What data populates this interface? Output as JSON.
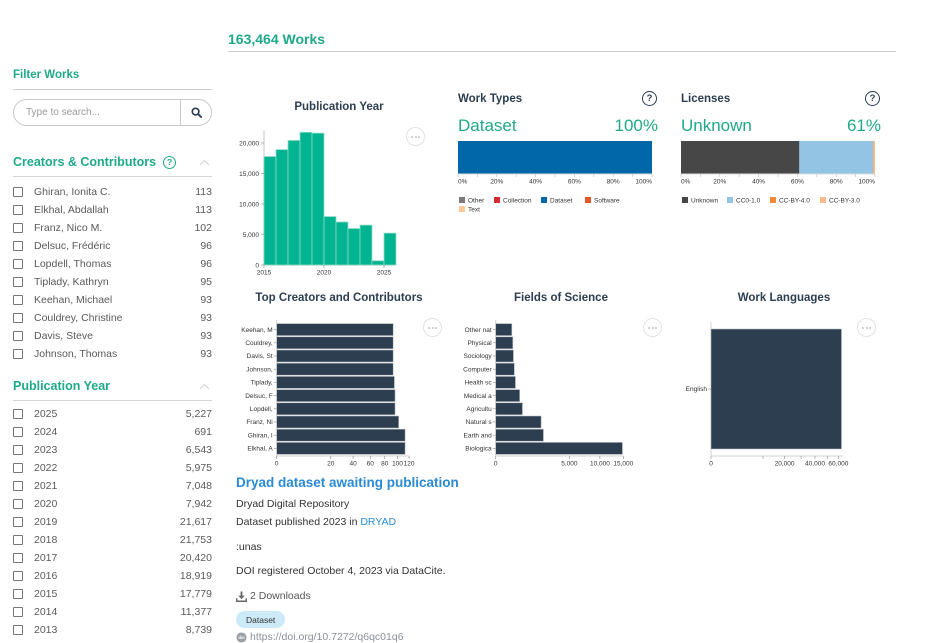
{
  "header": {
    "works_count": "163,464 Works"
  },
  "sidebar": {
    "filter_title": "Filter Works",
    "search": {
      "placeholder": "Type to search...",
      "value": ""
    },
    "creators": {
      "title": "Creators & Contributors",
      "help_icon": "question-circle-icon",
      "collapse_icon": "chevron-up-icon",
      "items": [
        {
          "label": "Ghiran, Ionita C.",
          "count": "113"
        },
        {
          "label": "Elkhal, Abdallah",
          "count": "113"
        },
        {
          "label": "Franz, Nico M.",
          "count": "102"
        },
        {
          "label": "Delsuc, Frédéric",
          "count": "96"
        },
        {
          "label": "Lopdell, Thomas",
          "count": "96"
        },
        {
          "label": "Tiplady, Kathryn",
          "count": "95"
        },
        {
          "label": "Keehan, Michael",
          "count": "93"
        },
        {
          "label": "Couldrey, Christine",
          "count": "93"
        },
        {
          "label": "Davis, Steve",
          "count": "93"
        },
        {
          "label": "Johnson, Thomas",
          "count": "93"
        }
      ]
    },
    "publication_year": {
      "title": "Publication Year",
      "collapse_icon": "chevron-up-icon",
      "items": [
        {
          "label": "2025",
          "count": "5,227"
        },
        {
          "label": "2024",
          "count": "691"
        },
        {
          "label": "2023",
          "count": "6,543"
        },
        {
          "label": "2022",
          "count": "5,975"
        },
        {
          "label": "2021",
          "count": "7,048"
        },
        {
          "label": "2020",
          "count": "7,942"
        },
        {
          "label": "2019",
          "count": "21,617"
        },
        {
          "label": "2018",
          "count": "21,753"
        },
        {
          "label": "2017",
          "count": "20,420"
        },
        {
          "label": "2016",
          "count": "18,919"
        },
        {
          "label": "2015",
          "count": "17,779"
        },
        {
          "label": "2014",
          "count": "11,377"
        },
        {
          "label": "2013",
          "count": "8,739"
        }
      ]
    }
  },
  "chart_data": [
    {
      "type": "bar",
      "title": "Publication Year",
      "categories": [
        "2015",
        "2016",
        "2017",
        "2018",
        "2019",
        "2020",
        "2021",
        "2022",
        "2023",
        "2024",
        "2025"
      ],
      "values": [
        17779,
        18919,
        20420,
        21753,
        21617,
        7942,
        7048,
        5975,
        6543,
        691,
        5227
      ],
      "xlabel": "",
      "ylabel": "",
      "xticks": [
        "2015",
        "2020",
        "2025"
      ],
      "yticks": [
        0,
        5000,
        10000,
        15000,
        20000
      ],
      "ytick_labels": [
        "0",
        "5,000",
        "10,000",
        "15,000",
        "20,000"
      ],
      "ylim": [
        0,
        22000
      ],
      "color": "#00b391",
      "grid": false
    },
    {
      "type": "bar",
      "orientation": "horizontal-stacked",
      "title": "Work Types",
      "highlight_label": "Dataset",
      "highlight_value": "100%",
      "series": [
        {
          "name": "Other",
          "value": 0,
          "color": "#7a7a7a"
        },
        {
          "name": "Collection",
          "value": 0,
          "color": "#d62b35"
        },
        {
          "name": "Dataset",
          "value": 100,
          "color": "#0167a8"
        },
        {
          "name": "Software",
          "value": 0,
          "color": "#e8552a"
        },
        {
          "name": "Text",
          "value": 0,
          "color": "#fdc89a"
        }
      ],
      "xlim": [
        0,
        100
      ],
      "xtick_labels": [
        "0%",
        "20%",
        "40%",
        "60%",
        "80%",
        "100%"
      ],
      "legend": "bottom"
    },
    {
      "type": "bar",
      "orientation": "horizontal-stacked",
      "title": "Licenses",
      "highlight_label": "Unknown",
      "highlight_value": "61%",
      "series": [
        {
          "name": "Unknown",
          "value": 61,
          "color": "#474747"
        },
        {
          "name": "CC0-1.0",
          "value": 38,
          "color": "#93c4e4"
        },
        {
          "name": "CC-BY-4.0",
          "value": 0.2,
          "color": "#f0883a"
        },
        {
          "name": "CC-BY-3.0",
          "value": 0.8,
          "color": "#fcb98a"
        }
      ],
      "xlim": [
        0,
        100
      ],
      "xtick_labels": [
        "0%",
        "20%",
        "40%",
        "60%",
        "80%",
        "100%"
      ],
      "legend": "bottom"
    },
    {
      "type": "bar",
      "orientation": "horizontal",
      "title": "Top Creators and Contributors",
      "categories": [
        "Keehan, M",
        "Couldrey,",
        "Davis, St",
        "Johnson,",
        "Tiplady,",
        "Delsuc, F",
        "Lopdell,",
        "Franz, Ni",
        "Ghiran, I",
        "Elkhal, A"
      ],
      "values": [
        93,
        93,
        93,
        93,
        95,
        96,
        96,
        102,
        113,
        113
      ],
      "xscale": "sqrt",
      "xlim": [
        0,
        120
      ],
      "xticks": [
        0,
        20,
        40,
        60,
        80,
        100,
        120
      ],
      "xtick_labels": [
        "0",
        "20",
        "40",
        "60",
        "80",
        "100",
        "120"
      ],
      "color": "#2c3e50"
    },
    {
      "type": "bar",
      "orientation": "horizontal",
      "title": "Fields of Science",
      "categories": [
        "Other nat",
        "Physical",
        "Sociology",
        "Computer",
        "Health sc",
        "Medical a",
        "Agricultu",
        "Natural s",
        "Earth and",
        "Biologica"
      ],
      "values": [
        240,
        270,
        290,
        320,
        360,
        530,
        660,
        1900,
        2100,
        14800
      ],
      "xscale": "sqrt",
      "xlim": [
        0,
        15000
      ],
      "xticks": [
        0,
        5000,
        10000,
        15000
      ],
      "xtick_labels": [
        "0",
        "5,000",
        "10,000",
        "15,000"
      ],
      "color": "#2c3e50"
    },
    {
      "type": "bar",
      "orientation": "horizontal",
      "title": "Work Languages",
      "categories": [
        "English"
      ],
      "values": [
        63000
      ],
      "xscale": "sqrt",
      "xlim": [
        0,
        64000
      ],
      "xticks": [
        0,
        10000,
        20000,
        30000,
        40000,
        50000,
        60000
      ],
      "xtick_labels": [
        "0",
        "",
        "20,000",
        "",
        "40,000",
        "",
        "60,000"
      ],
      "color": "#2c3e50"
    }
  ],
  "work": {
    "title": "Dryad dataset awaiting publication",
    "publisher": "Dryad Digital Repository",
    "published_prefix": "Dataset published 2023 in ",
    "published_link": "DRYAD",
    "description": ":unas",
    "registered": "DOI registered October 4, 2023 via DataCite.",
    "downloads": "2 Downloads",
    "badge": "Dataset",
    "doi_url": "https://doi.org/10.7272/q6qc01q6"
  }
}
